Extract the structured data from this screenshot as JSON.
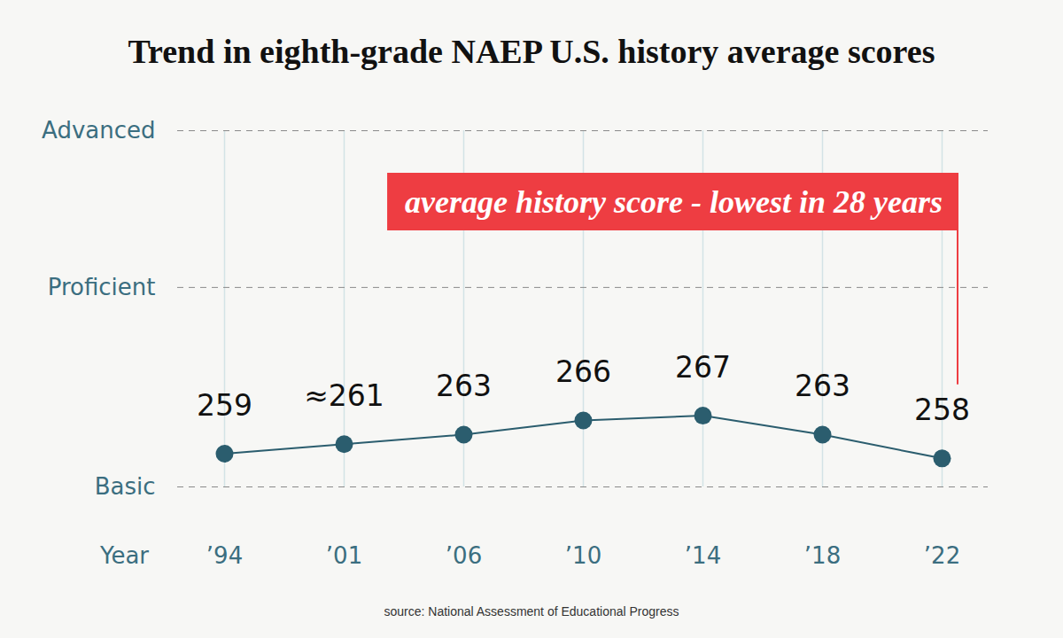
{
  "chart_data": {
    "type": "line",
    "title": "Trend in eighth-grade NAEP U.S. history average scores",
    "xlabel": "Year",
    "categories": [
      "’94",
      "’01",
      "’06",
      "’10",
      "’14",
      "’18",
      "’22"
    ],
    "values": [
      259,
      261,
      263,
      266,
      267,
      263,
      258
    ],
    "value_labels": [
      "259",
      "≈261",
      "263",
      "266",
      "267",
      "263",
      "258"
    ],
    "data_labels": true,
    "color": "#2b5d6e",
    "marker": "circle",
    "ylim": [
      252,
      327
    ],
    "yticks": [
      {
        "value": 252,
        "label": "Basic"
      },
      {
        "value": 294,
        "label": "Proficient"
      },
      {
        "value": 327,
        "label": "Advanced"
      }
    ],
    "grid": true,
    "annotations": [
      {
        "text": "average history score - lowest in 28 years",
        "x": "’22"
      }
    ],
    "source": "source: National Assessment of Educational Progress"
  }
}
